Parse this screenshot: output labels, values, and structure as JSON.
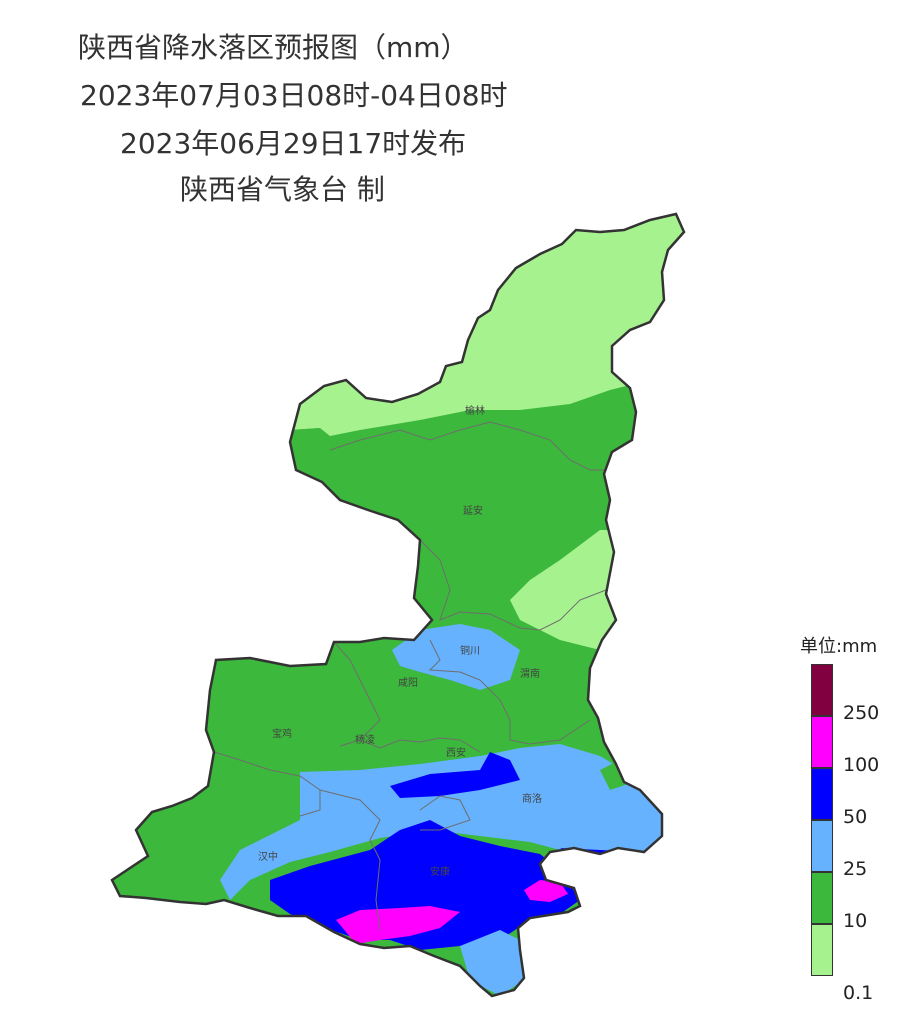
{
  "title": {
    "line1": "陕西省降水落区预报图（mm）",
    "line2": "2023年07月03日08时-04日08时",
    "line3": "2023年06月29日17时发布",
    "line4": "陕西省气象台 制"
  },
  "cities": [
    "榆林",
    "延安",
    "铜川",
    "咸阳",
    "渭南",
    "宝鸡",
    "杨凌",
    "西安",
    "商洛",
    "汉中",
    "安康"
  ],
  "legend": {
    "title": "单位:mm",
    "labels": [
      "250",
      "100",
      "50",
      "25",
      "10",
      "0.1"
    ],
    "colors": [
      "#800040",
      "#ff00ff",
      "#0000ff",
      "#66b2ff",
      "#3cb83c",
      "#a6f28f"
    ]
  }
}
